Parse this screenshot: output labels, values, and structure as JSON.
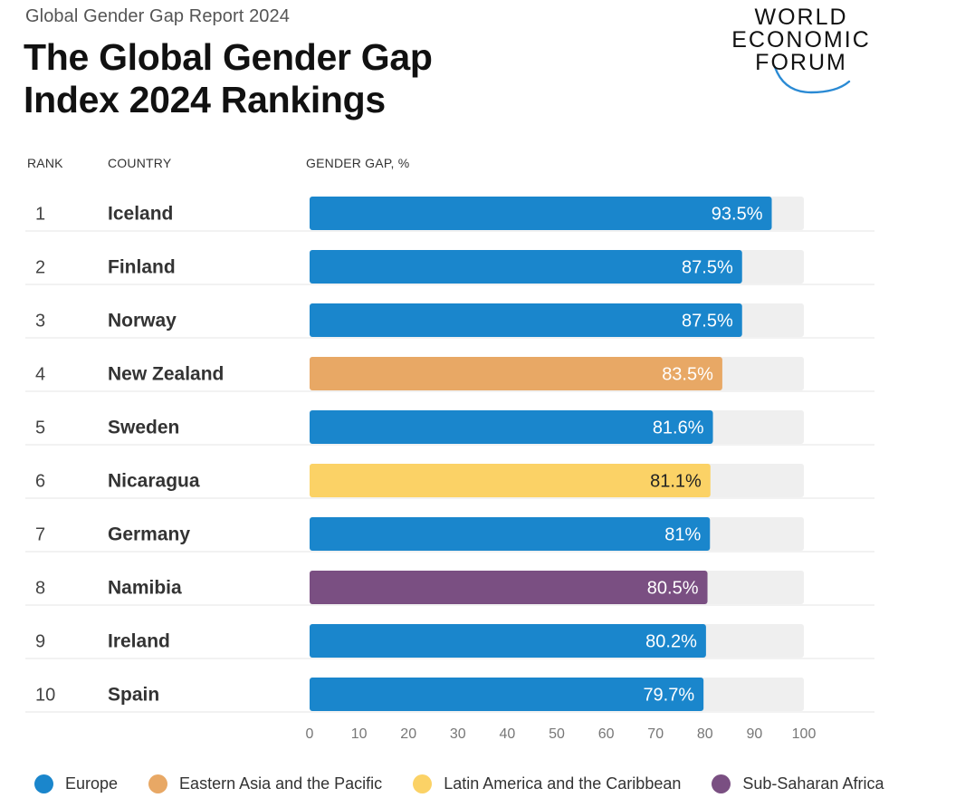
{
  "header": {
    "report": "Global Gender Gap Report 2024",
    "title_line1": "The Global Gender Gap",
    "title_line2": "Index 2024 Rankings",
    "logo_lines": [
      "WORLD",
      "ECONOMIC",
      "FORUM"
    ]
  },
  "columns": {
    "rank": "RANK",
    "country": "COUNTRY",
    "value": "GENDER GAP, %"
  },
  "colors": {
    "Europe": "#1a86cc",
    "Eastern Asia and the Pacific": "#e8a865",
    "Latin America and the Caribbean": "#fbd266",
    "Sub-Saharan Africa": "#7a4f82",
    "track": "#efefef",
    "logo_arc": "#2a8ad4"
  },
  "chart_data": {
    "type": "bar",
    "orientation": "horizontal",
    "xlim": [
      0,
      100
    ],
    "xticks": [
      0,
      10,
      20,
      30,
      40,
      50,
      60,
      70,
      80,
      90,
      100
    ],
    "rows": [
      {
        "rank": "1",
        "country": "Iceland",
        "value": 93.5,
        "label": "93.5%",
        "region": "Europe"
      },
      {
        "rank": "2",
        "country": "Finland",
        "value": 87.5,
        "label": "87.5%",
        "region": "Europe"
      },
      {
        "rank": "3",
        "country": "Norway",
        "value": 87.5,
        "label": "87.5%",
        "region": "Europe"
      },
      {
        "rank": "4",
        "country": "New Zealand",
        "value": 83.5,
        "label": "83.5%",
        "region": "Eastern Asia and the Pacific"
      },
      {
        "rank": "5",
        "country": "Sweden",
        "value": 81.6,
        "label": "81.6%",
        "region": "Europe"
      },
      {
        "rank": "6",
        "country": "Nicaragua",
        "value": 81.1,
        "label": "81.1%",
        "region": "Latin America and the Caribbean"
      },
      {
        "rank": "7",
        "country": "Germany",
        "value": 81,
        "label": "81%",
        "region": "Europe"
      },
      {
        "rank": "8",
        "country": "Namibia",
        "value": 80.5,
        "label": "80.5%",
        "region": "Sub-Saharan Africa"
      },
      {
        "rank": "9",
        "country": "Ireland",
        "value": 80.2,
        "label": "80.2%",
        "region": "Europe"
      },
      {
        "rank": "10",
        "country": "Spain",
        "value": 79.7,
        "label": "79.7%",
        "region": "Europe"
      }
    ]
  },
  "legend": [
    {
      "label": "Europe",
      "color": "#1a86cc"
    },
    {
      "label": "Eastern Asia and the Pacific",
      "color": "#e8a865"
    },
    {
      "label": "Latin America and the Caribbean",
      "color": "#fbd266"
    },
    {
      "label": "Sub-Saharan Africa",
      "color": "#7a4f82"
    }
  ]
}
